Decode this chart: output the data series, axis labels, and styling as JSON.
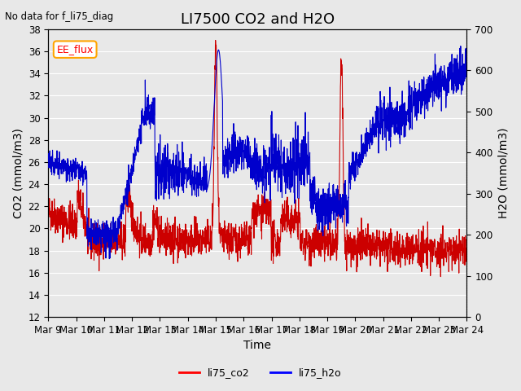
{
  "title": "LI7500 CO2 and H2O",
  "subtitle": "No data for f_li75_diag",
  "xlabel": "Time",
  "ylabel_left": "CO2 (mmol/m3)",
  "ylabel_right": "H2O (mmol/m3)",
  "ylim_left": [
    12,
    38
  ],
  "ylim_right": [
    0,
    700
  ],
  "yticks_left": [
    12,
    14,
    16,
    18,
    20,
    22,
    24,
    26,
    28,
    30,
    32,
    34,
    36,
    38
  ],
  "yticks_right": [
    0,
    100,
    200,
    300,
    400,
    500,
    600,
    700
  ],
  "xtick_labels": [
    "Mar 9",
    "Mar 10",
    "Mar 11",
    "Mar 12",
    "Mar 13",
    "Mar 14",
    "Mar 15",
    "Mar 16",
    "Mar 17",
    "Mar 18",
    "Mar 19",
    "Mar 20",
    "Mar 21",
    "Mar 22",
    "Mar 23",
    "Mar 24"
  ],
  "legend_labels": [
    "li75_co2",
    "li75_h2o"
  ],
  "legend_colors": [
    "red",
    "blue"
  ],
  "box_label": "EE_flux",
  "color_co2": "#cc0000",
  "color_h2o": "#0000cc",
  "background_color": "#e8e8e8",
  "plot_bg_color": "#e8e8e8",
  "grid_color": "#ffffff",
  "title_fontsize": 13,
  "axis_fontsize": 10,
  "tick_fontsize": 8.5
}
